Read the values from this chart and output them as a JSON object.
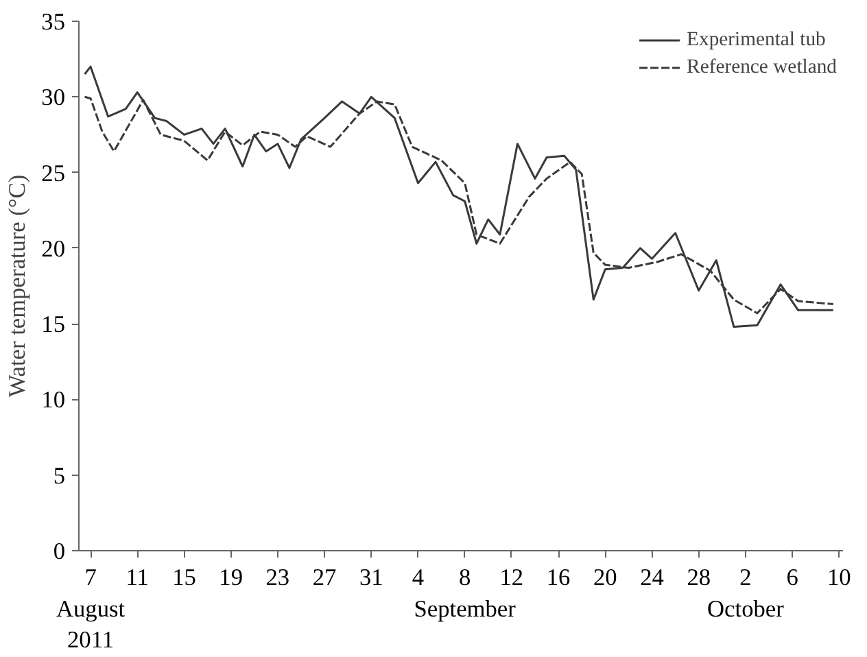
{
  "chart_data": {
    "type": "line",
    "ylabel": "Water temperature (°C)",
    "ylim": [
      0,
      35
    ],
    "yticks": [
      0,
      5,
      10,
      15,
      20,
      25,
      30,
      35
    ],
    "xlim": [
      "2011-08-06",
      "2011-10-10T08:00"
    ],
    "xticks": [
      {
        "value": "2011-08-07",
        "label": "7\nAugust\n2011"
      },
      {
        "value": "2011-08-11",
        "label": "11"
      },
      {
        "value": "2011-08-15",
        "label": "15"
      },
      {
        "value": "2011-08-19",
        "label": "19"
      },
      {
        "value": "2011-08-23",
        "label": "23"
      },
      {
        "value": "2011-08-27",
        "label": "27"
      },
      {
        "value": "2011-08-31",
        "label": "31"
      },
      {
        "value": "2011-09-04",
        "label": "4"
      },
      {
        "value": "2011-09-08",
        "label": "8\nSeptember"
      },
      {
        "value": "2011-09-12",
        "label": "12"
      },
      {
        "value": "2011-09-16",
        "label": "16"
      },
      {
        "value": "2011-09-20",
        "label": "20"
      },
      {
        "value": "2011-09-24",
        "label": "24"
      },
      {
        "value": "2011-09-28",
        "label": "28"
      },
      {
        "value": "2011-10-02",
        "label": "2\nOctober"
      },
      {
        "value": "2011-10-06",
        "label": "6"
      },
      {
        "value": "2011-10-10",
        "label": "10"
      }
    ],
    "grid": false,
    "legend": "top right",
    "marker": "none",
    "series": [
      {
        "name": "Experimental tub",
        "color": "#3a3a3a",
        "line_style": "solid",
        "x": [
          "2011-08-06T12:00",
          "2011-08-07",
          "2011-08-08T12:00",
          "2011-08-10",
          "2011-08-11",
          "2011-08-12T12:00",
          "2011-08-13T12:00",
          "2011-08-15",
          "2011-08-16T12:00",
          "2011-08-17T12:00",
          "2011-08-18T12:00",
          "2011-08-20",
          "2011-08-21",
          "2011-08-22",
          "2011-08-23",
          "2011-08-24",
          "2011-08-25",
          "2011-08-27",
          "2011-08-28T12:00",
          "2011-08-30",
          "2011-08-31",
          "2011-09-02",
          "2011-09-04",
          "2011-09-05T12:00",
          "2011-09-07",
          "2011-09-08",
          "2011-09-09",
          "2011-09-10",
          "2011-09-11",
          "2011-09-12T12:00",
          "2011-09-14",
          "2011-09-15",
          "2011-09-16T12:00",
          "2011-09-17T12:00",
          "2011-09-19",
          "2011-09-20",
          "2011-09-21T12:00",
          "2011-09-23",
          "2011-09-24",
          "2011-09-26",
          "2011-09-28",
          "2011-09-29T12:00",
          "2011-10-01",
          "2011-10-03",
          "2011-10-05",
          "2011-10-06T12:00",
          "2011-10-09T12:00"
        ],
        "values": [
          31.5,
          32.0,
          28.7,
          29.2,
          30.3,
          28.6,
          28.4,
          27.5,
          27.9,
          26.9,
          27.9,
          25.4,
          27.5,
          26.4,
          26.9,
          25.3,
          27.2,
          28.6,
          29.7,
          28.9,
          30.0,
          28.6,
          24.3,
          25.7,
          23.5,
          23.1,
          20.3,
          21.9,
          20.9,
          26.9,
          24.6,
          26.0,
          26.1,
          25.2,
          16.6,
          18.6,
          18.7,
          20.0,
          19.3,
          21.0,
          17.2,
          19.2,
          14.8,
          14.9,
          17.6,
          15.9,
          15.9
        ]
      },
      {
        "name": "Reference wetland",
        "color": "#3a3a3a",
        "line_style": "dashed",
        "x": [
          "2011-08-06T12:00",
          "2011-08-07",
          "2011-08-08",
          "2011-08-09",
          "2011-08-11T12:00",
          "2011-08-13",
          "2011-08-15",
          "2011-08-17",
          "2011-08-18T12:00",
          "2011-08-20",
          "2011-08-21T12:00",
          "2011-08-23",
          "2011-08-24T12:00",
          "2011-08-25T12:00",
          "2011-08-27T12:00",
          "2011-08-30",
          "2011-08-31T12:00",
          "2011-09-02",
          "2011-09-03T12:00",
          "2011-09-06",
          "2011-09-08",
          "2011-09-09",
          "2011-09-11",
          "2011-09-13T12:00",
          "2011-09-15",
          "2011-09-17",
          "2011-09-18",
          "2011-09-19",
          "2011-09-20",
          "2011-09-22",
          "2011-09-24T12:00",
          "2011-09-26T12:00",
          "2011-09-29",
          "2011-10-01",
          "2011-10-03",
          "2011-10-05",
          "2011-10-06T12:00",
          "2011-10-09T12:00"
        ],
        "values": [
          30.0,
          29.9,
          27.7,
          26.4,
          29.8,
          27.5,
          27.1,
          25.8,
          27.7,
          26.8,
          27.7,
          27.5,
          26.7,
          27.4,
          26.7,
          28.9,
          29.7,
          29.5,
          26.7,
          25.8,
          24.3,
          20.9,
          20.3,
          23.4,
          24.6,
          25.7,
          24.9,
          19.7,
          18.9,
          18.7,
          19.1,
          19.6,
          18.5,
          16.6,
          15.7,
          17.3,
          16.5,
          16.3
        ]
      }
    ]
  }
}
